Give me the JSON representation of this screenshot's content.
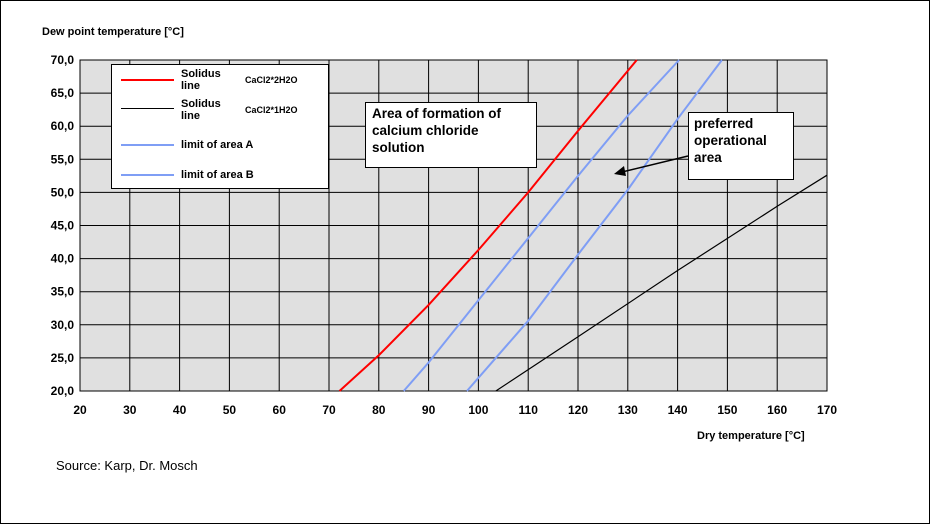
{
  "chart_data": {
    "type": "line",
    "ylabel": "Dew point temperature [°C]",
    "xlabel": "Dry temperature [°C]",
    "xlim": [
      20,
      170
    ],
    "ylim": [
      20,
      70
    ],
    "x_ticks": [
      "20",
      "30",
      "40",
      "50",
      "60",
      "70",
      "80",
      "90",
      "100",
      "110",
      "120",
      "130",
      "140",
      "150",
      "160",
      "170"
    ],
    "x_tick_values": [
      20,
      30,
      40,
      50,
      60,
      70,
      80,
      90,
      100,
      110,
      120,
      130,
      140,
      150,
      160,
      170
    ],
    "y_ticks": [
      "70,0",
      "65,0",
      "60,0",
      "55,0",
      "50,0",
      "45,0",
      "40,0",
      "35,0",
      "30,0",
      "25,0",
      "20,0"
    ],
    "y_tick_values": [
      70,
      65,
      60,
      55,
      50,
      45,
      40,
      35,
      30,
      25,
      20
    ],
    "grid": true,
    "plot_background": "#e0e0e0",
    "legend_position": "top-left",
    "series": [
      {
        "name": "Solidus line",
        "subscript": "CaCl2*2H2O",
        "color": "#ff0000",
        "x": [
          72.1,
          80,
          90,
          100,
          110,
          120,
          131.8
        ],
        "y": [
          20,
          25.4,
          33.0,
          41.3,
          50.0,
          59.3,
          70
        ]
      },
      {
        "name": "Solidus line",
        "subscript": "CaCl2*1H2O",
        "color": "#000000",
        "x": [
          103.5,
          120,
          140,
          160,
          170
        ],
        "y": [
          20,
          28.2,
          38.2,
          47.9,
          52.6
        ]
      },
      {
        "name": "limit of area A",
        "color": "#7f9ef5",
        "x": [
          85,
          90,
          100,
          110,
          120,
          130,
          140.3
        ],
        "y": [
          20,
          24.3,
          33.7,
          43.1,
          52.5,
          61.6,
          70
        ]
      },
      {
        "name": "limit of area B",
        "color": "#7f9ef5",
        "x": [
          97.7,
          110,
          120,
          130,
          140,
          148.9
        ],
        "y": [
          20,
          30.6,
          40.6,
          50.4,
          61.1,
          70
        ]
      }
    ],
    "annotations": [
      {
        "id": "formation",
        "lines": [
          "Area of formation of",
          "calcium chloride",
          "solution"
        ]
      },
      {
        "id": "preferred",
        "lines": [
          "preferred",
          "operational",
          "area"
        ]
      }
    ]
  },
  "source_text": "Source: Karp, Dr. Mosch"
}
